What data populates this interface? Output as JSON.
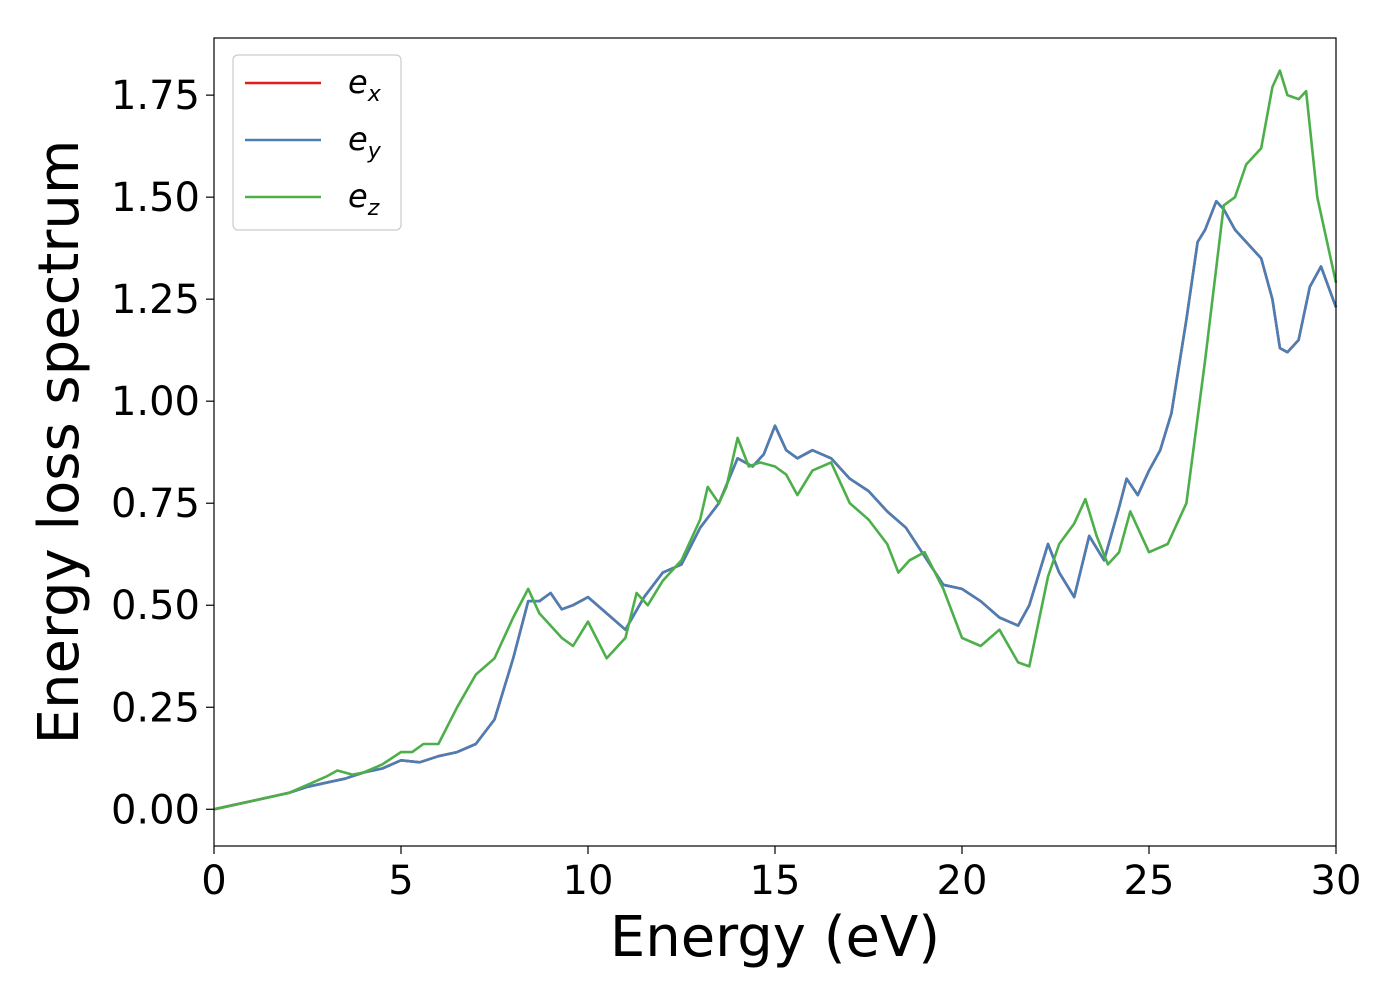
{
  "chart_data": {
    "type": "line",
    "title": "",
    "xlabel": "Energy (eV)",
    "ylabel": "Energy loss spectrum",
    "xlim": [
      0,
      30
    ],
    "ylim": [
      -0.09,
      1.89
    ],
    "xticks": [
      0,
      5,
      10,
      15,
      20,
      25,
      30
    ],
    "xtick_labels": [
      "0",
      "5",
      "10",
      "15",
      "20",
      "25",
      "30"
    ],
    "yticks": [
      0.0,
      0.25,
      0.5,
      0.75,
      1.0,
      1.25,
      1.5,
      1.75
    ],
    "ytick_labels": [
      "0.00",
      "0.25",
      "0.50",
      "0.75",
      "1.00",
      "1.25",
      "1.50",
      "1.75"
    ],
    "grid": false,
    "legend_position": "top-left",
    "series": [
      {
        "name": "e_x",
        "legend_base": "e",
        "legend_sub": "x",
        "color": "#e41a1c",
        "hidden_beneath": "e_y",
        "x": [
          0,
          0.5,
          1.0,
          1.5,
          2.0,
          2.5,
          3.0,
          3.5,
          4.0,
          4.5,
          5.0,
          5.5,
          6.0,
          6.5,
          7.0,
          7.5,
          8.0,
          8.4,
          8.7,
          9.0,
          9.3,
          9.6,
          10.0,
          10.5,
          11.0,
          11.5,
          12.0,
          12.5,
          13.0,
          13.5,
          14.0,
          14.4,
          14.7,
          15.0,
          15.3,
          15.6,
          16.0,
          16.5,
          17.0,
          17.5,
          18.0,
          18.5,
          19.0,
          19.5,
          20.0,
          20.5,
          21.0,
          21.5,
          21.8,
          22.3,
          22.6,
          23.0,
          23.4,
          23.8,
          24.2,
          24.4,
          24.7,
          25.0,
          25.3,
          25.6,
          26.0,
          26.3,
          26.5,
          26.8,
          27.0,
          27.3,
          27.6,
          28.0,
          28.3,
          28.5,
          28.7,
          29.0,
          29.3,
          29.6,
          30.0
        ],
        "y": [
          0,
          0.01,
          0.02,
          0.03,
          0.04,
          0.055,
          0.065,
          0.075,
          0.09,
          0.1,
          0.12,
          0.115,
          0.13,
          0.14,
          0.16,
          0.22,
          0.37,
          0.51,
          0.51,
          0.53,
          0.49,
          0.5,
          0.52,
          0.48,
          0.44,
          0.52,
          0.58,
          0.6,
          0.69,
          0.75,
          0.86,
          0.84,
          0.87,
          0.94,
          0.88,
          0.86,
          0.88,
          0.86,
          0.81,
          0.78,
          0.73,
          0.69,
          0.62,
          0.55,
          0.54,
          0.51,
          0.47,
          0.45,
          0.5,
          0.65,
          0.58,
          0.52,
          0.67,
          0.61,
          0.74,
          0.81,
          0.77,
          0.83,
          0.88,
          0.97,
          1.2,
          1.39,
          1.42,
          1.49,
          1.47,
          1.42,
          1.39,
          1.35,
          1.25,
          1.13,
          1.12,
          1.15,
          1.28,
          1.33,
          1.23
        ]
      },
      {
        "name": "e_y",
        "legend_base": "e",
        "legend_sub": "y",
        "color": "#4a7fb5",
        "x": [
          0,
          0.5,
          1.0,
          1.5,
          2.0,
          2.5,
          3.0,
          3.5,
          4.0,
          4.5,
          5.0,
          5.5,
          6.0,
          6.5,
          7.0,
          7.5,
          8.0,
          8.4,
          8.7,
          9.0,
          9.3,
          9.6,
          10.0,
          10.5,
          11.0,
          11.5,
          12.0,
          12.5,
          13.0,
          13.5,
          14.0,
          14.4,
          14.7,
          15.0,
          15.3,
          15.6,
          16.0,
          16.5,
          17.0,
          17.5,
          18.0,
          18.5,
          19.0,
          19.5,
          20.0,
          20.5,
          21.0,
          21.5,
          21.8,
          22.3,
          22.6,
          23.0,
          23.4,
          23.8,
          24.2,
          24.4,
          24.7,
          25.0,
          25.3,
          25.6,
          26.0,
          26.3,
          26.5,
          26.8,
          27.0,
          27.3,
          27.6,
          28.0,
          28.3,
          28.5,
          28.7,
          29.0,
          29.3,
          29.6,
          30.0
        ],
        "y": [
          0,
          0.01,
          0.02,
          0.03,
          0.04,
          0.055,
          0.065,
          0.075,
          0.09,
          0.1,
          0.12,
          0.115,
          0.13,
          0.14,
          0.16,
          0.22,
          0.37,
          0.51,
          0.51,
          0.53,
          0.49,
          0.5,
          0.52,
          0.48,
          0.44,
          0.52,
          0.58,
          0.6,
          0.69,
          0.75,
          0.86,
          0.84,
          0.87,
          0.94,
          0.88,
          0.86,
          0.88,
          0.86,
          0.81,
          0.78,
          0.73,
          0.69,
          0.62,
          0.55,
          0.54,
          0.51,
          0.47,
          0.45,
          0.5,
          0.65,
          0.58,
          0.52,
          0.67,
          0.61,
          0.74,
          0.81,
          0.77,
          0.83,
          0.88,
          0.97,
          1.2,
          1.39,
          1.42,
          1.49,
          1.47,
          1.42,
          1.39,
          1.35,
          1.25,
          1.13,
          1.12,
          1.15,
          1.28,
          1.33,
          1.23
        ]
      },
      {
        "name": "e_z",
        "legend_base": "e",
        "legend_sub": "z",
        "color": "#4daf4a",
        "x": [
          0,
          0.5,
          1.0,
          1.5,
          2.0,
          2.5,
          3.0,
          3.3,
          3.7,
          4.0,
          4.5,
          5.0,
          5.3,
          5.6,
          6.0,
          6.5,
          7.0,
          7.5,
          8.0,
          8.4,
          8.7,
          9.0,
          9.3,
          9.6,
          10.0,
          10.5,
          11.0,
          11.3,
          11.6,
          12.0,
          12.5,
          13.0,
          13.2,
          13.5,
          13.7,
          14.0,
          14.3,
          14.6,
          15.0,
          15.3,
          15.6,
          16.0,
          16.5,
          17.0,
          17.5,
          18.0,
          18.3,
          18.6,
          19.0,
          19.5,
          20.0,
          20.5,
          21.0,
          21.5,
          21.8,
          22.3,
          22.6,
          23.0,
          23.3,
          23.6,
          23.9,
          24.2,
          24.5,
          24.8,
          25.0,
          25.5,
          26.0,
          26.5,
          27.0,
          27.3,
          27.6,
          28.0,
          28.3,
          28.5,
          28.7,
          29.0,
          29.2,
          29.5,
          30.0
        ],
        "y": [
          0,
          0.01,
          0.02,
          0.03,
          0.04,
          0.06,
          0.08,
          0.095,
          0.085,
          0.09,
          0.11,
          0.14,
          0.14,
          0.16,
          0.16,
          0.25,
          0.33,
          0.37,
          0.47,
          0.54,
          0.48,
          0.45,
          0.42,
          0.4,
          0.46,
          0.37,
          0.42,
          0.53,
          0.5,
          0.56,
          0.61,
          0.71,
          0.79,
          0.75,
          0.79,
          0.91,
          0.84,
          0.85,
          0.84,
          0.82,
          0.77,
          0.83,
          0.85,
          0.75,
          0.71,
          0.65,
          0.58,
          0.61,
          0.63,
          0.54,
          0.42,
          0.4,
          0.44,
          0.36,
          0.35,
          0.57,
          0.65,
          0.7,
          0.76,
          0.67,
          0.6,
          0.63,
          0.73,
          0.67,
          0.63,
          0.65,
          0.75,
          1.1,
          1.48,
          1.5,
          1.58,
          1.62,
          1.77,
          1.81,
          1.75,
          1.74,
          1.76,
          1.5,
          1.29
        ]
      }
    ]
  }
}
